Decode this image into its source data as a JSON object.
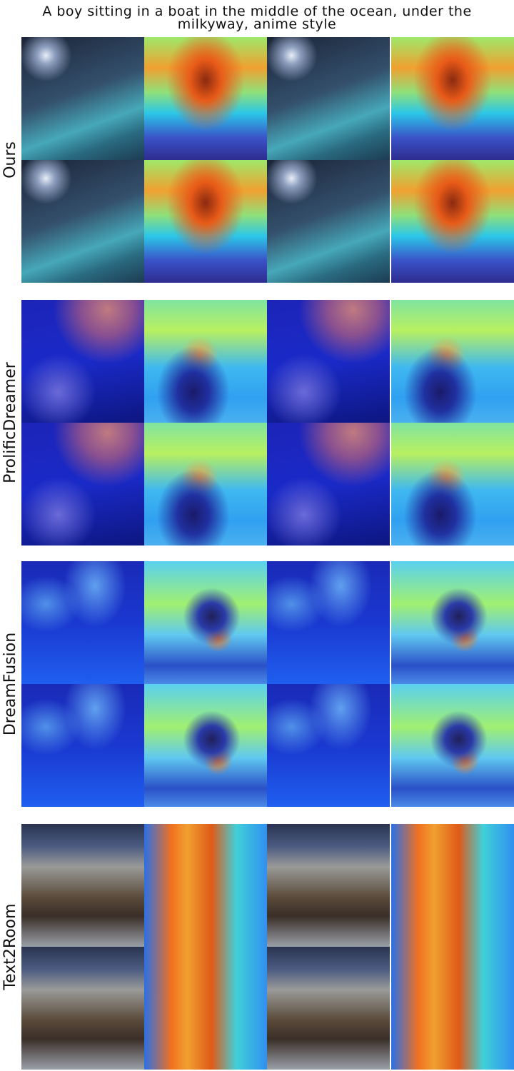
{
  "title_lines": [
    "A boy sitting in a boat in the middle of the ocean, under the",
    "milkyway, anime style"
  ],
  "groups": [
    {
      "label": "Ours"
    },
    {
      "label": "ProlificDreamer"
    },
    {
      "label": "DreamFusion"
    },
    {
      "label": "Text2Room"
    }
  ]
}
